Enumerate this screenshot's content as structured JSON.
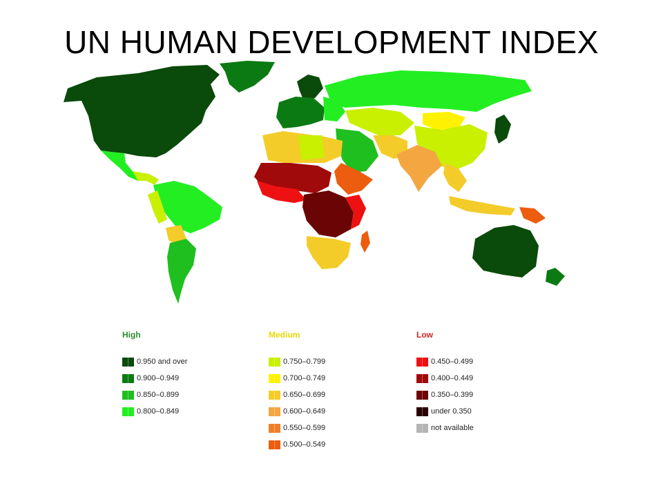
{
  "title": "UN HUMAN DEVELOPMENT INDEX",
  "legend": {
    "groups": [
      {
        "heading": "High",
        "heading_color": "#2e8b2e",
        "items": [
          {
            "label": "0.950 and over",
            "color": "#0a4a0a"
          },
          {
            "label": "0.900–0.949",
            "color": "#0b7a12"
          },
          {
            "label": "0.850–0.899",
            "color": "#1fbf1f"
          },
          {
            "label": "0.800–0.849",
            "color": "#22ee22"
          }
        ]
      },
      {
        "heading": "Medium",
        "heading_color": "#e8d800",
        "items": [
          {
            "label": "0.750–0.799",
            "color": "#c8f000"
          },
          {
            "label": "0.700–0.749",
            "color": "#fff200"
          },
          {
            "label": "0.650–0.699",
            "color": "#f4cc2a"
          },
          {
            "label": "0.600–0.649",
            "color": "#f4a641"
          },
          {
            "label": "0.550–0.599",
            "color": "#f07f2a"
          },
          {
            "label": "0.500–0.549",
            "color": "#ec5d0f"
          }
        ]
      },
      {
        "heading": "Low",
        "heading_color": "#d62020",
        "items": [
          {
            "label": "0.450–0.499",
            "color": "#ee1111"
          },
          {
            "label": "0.400–0.449",
            "color": "#a00a0a"
          },
          {
            "label": "0.350–0.399",
            "color": "#6b0505"
          },
          {
            "label": "under 0.350",
            "color": "#2a0000"
          },
          {
            "label": "not available",
            "color": "#b4b4b4"
          }
        ]
      }
    ]
  }
}
